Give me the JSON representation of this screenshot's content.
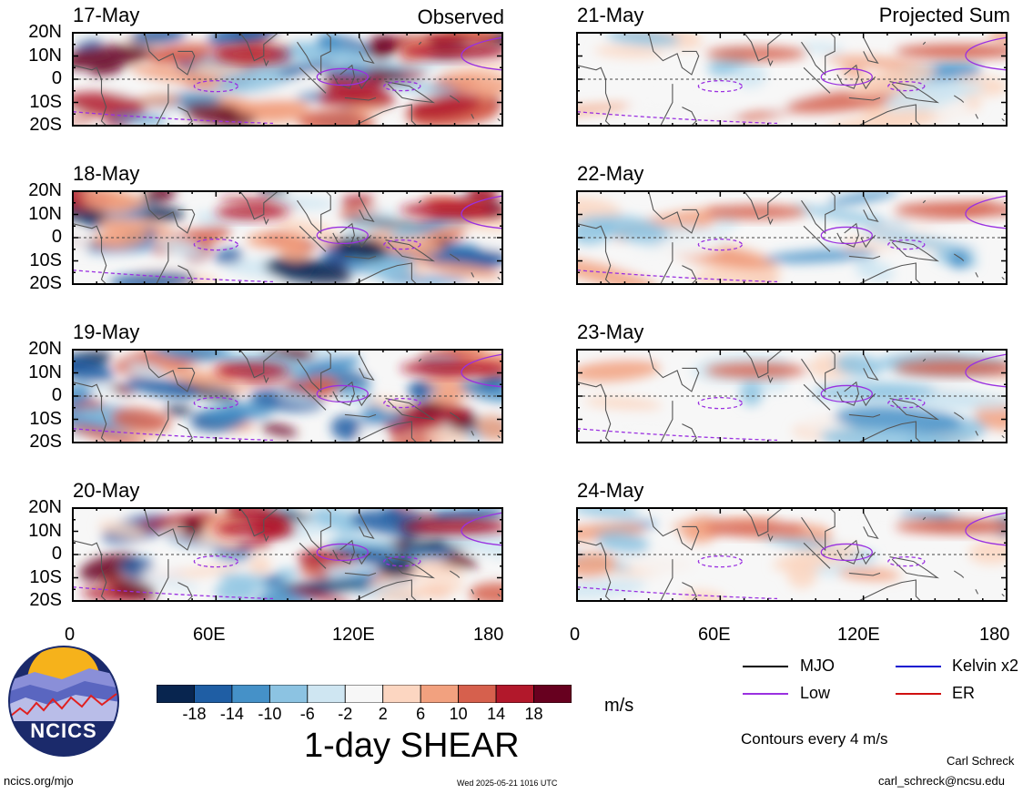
{
  "header": {
    "left_label": "Observed",
    "right_label": "Projected Sum"
  },
  "panels": {
    "observed": [
      "17-May",
      "18-May",
      "19-May",
      "20-May"
    ],
    "projected": [
      "21-May",
      "22-May",
      "23-May",
      "24-May"
    ]
  },
  "y_ticks": [
    "20N",
    "10N",
    "0",
    "10S",
    "20S"
  ],
  "x_ticks": [
    "0",
    "60E",
    "120E",
    "180"
  ],
  "colorbar": {
    "ticks": [
      "-18",
      "-14",
      "-10",
      "-6",
      "-2",
      "2",
      "6",
      "10",
      "14",
      "18"
    ],
    "colors": [
      "#08254f",
      "#1f5ea4",
      "#4591c8",
      "#8cc3e2",
      "#cfe6f2",
      "#f7f7f7",
      "#fcd6c1",
      "#f2a17f",
      "#d6604d",
      "#b2182b",
      "#67001f"
    ],
    "units": "m/s"
  },
  "title": "1-day SHEAR",
  "legend": {
    "items": [
      {
        "label": "MJO",
        "color": "#000000"
      },
      {
        "label": "Kelvin x2",
        "color": "#1010d0"
      },
      {
        "label": "Low",
        "color": "#9a30e0"
      },
      {
        "label": "ER",
        "color": "#d01010"
      }
    ],
    "contour_note": "Contours every 4 m/s"
  },
  "logo": {
    "text": "NCICS"
  },
  "footer": {
    "url": "ncics.org/mjo",
    "timestamp": "Wed 2025-05-21 1016 UTC",
    "author": "Carl Schreck",
    "email": "carl_schreck@ncsu.edu"
  },
  "chart_data": {
    "type": "heatmap",
    "variable": "1-day SHEAR",
    "units": "m/s",
    "x_range": [
      0,
      180
    ],
    "y_range": [
      -20,
      20
    ],
    "x_ticks": [
      "0",
      "60E",
      "120E",
      "180"
    ],
    "y_ticks": [
      "20N",
      "10N",
      "0",
      "10S",
      "20S"
    ],
    "levels": [
      -18,
      -14,
      -10,
      -6,
      -2,
      2,
      6,
      10,
      14,
      18
    ],
    "contour_interval": 4,
    "observed_dates": [
      "17-May",
      "18-May",
      "19-May",
      "20-May"
    ],
    "projected_dates": [
      "21-May",
      "22-May",
      "23-May",
      "24-May"
    ]
  }
}
